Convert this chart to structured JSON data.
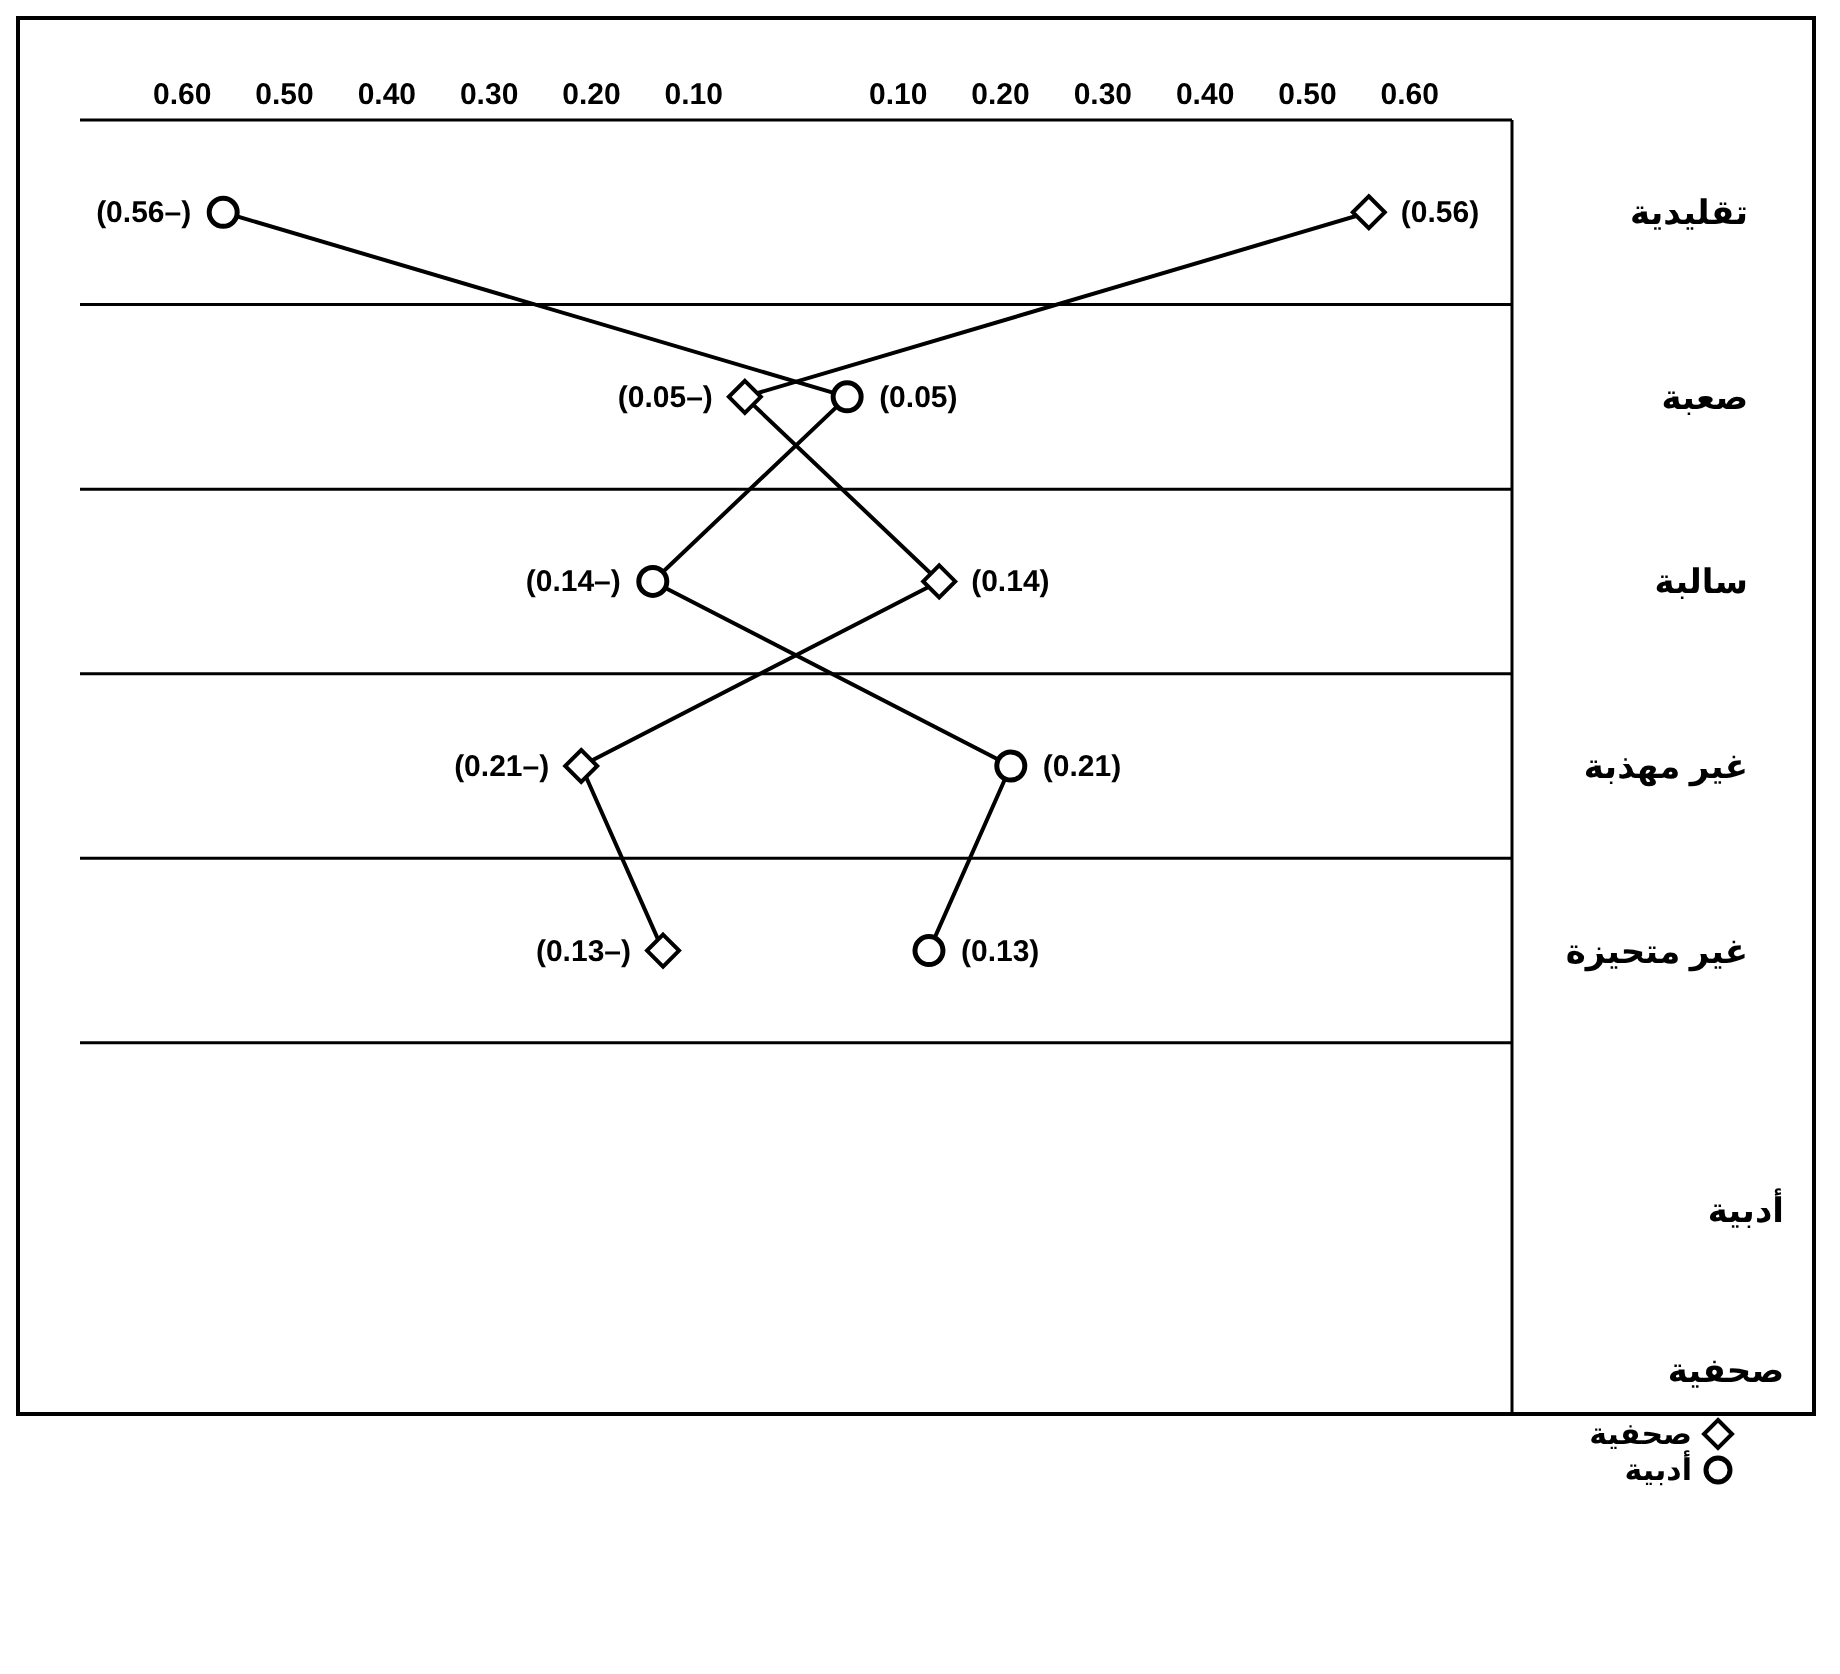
{
  "chart_data": {
    "type": "line",
    "orientation": "horizontal",
    "categories": [
      "تقليدية",
      "صعبة",
      "سالبة",
      "غير مهذبة",
      "غير متحيزة"
    ],
    "xlim": [
      -0.7,
      0.7
    ],
    "xticks": [
      {
        "value": -0.6,
        "label": "0.60"
      },
      {
        "value": -0.5,
        "label": "0.50"
      },
      {
        "value": -0.4,
        "label": "0.40"
      },
      {
        "value": -0.3,
        "label": "0.30"
      },
      {
        "value": -0.2,
        "label": "0.20"
      },
      {
        "value": -0.1,
        "label": "0.10"
      },
      {
        "value": 0.1,
        "label": "0.10"
      },
      {
        "value": 0.2,
        "label": "0.20"
      },
      {
        "value": 0.3,
        "label": "0.30"
      },
      {
        "value": 0.4,
        "label": "0.40"
      },
      {
        "value": 0.5,
        "label": "0.50"
      },
      {
        "value": 0.6,
        "label": "0.60"
      }
    ],
    "series": [
      {
        "name": "صحفية",
        "color": "#000000",
        "marker": "diamond",
        "values": [
          0.56,
          -0.05,
          0.14,
          -0.21,
          -0.13
        ],
        "value_labels": [
          "(0.56)",
          "(0.05–)",
          "(0.14)",
          "(0.21–)",
          "(0.13–)"
        ]
      },
      {
        "name": "أدبية",
        "color": "#000000",
        "marker": "circle",
        "values": [
          -0.56,
          0.05,
          -0.14,
          0.21,
          0.13
        ],
        "value_labels": [
          "(0.56–)",
          "(0.05)",
          "(0.14–)",
          "(0.21)",
          "(0.13)"
        ]
      }
    ],
    "annotations": [
      "أدبية",
      "صحفية"
    ],
    "grid": "y",
    "legend": "bottom right"
  }
}
